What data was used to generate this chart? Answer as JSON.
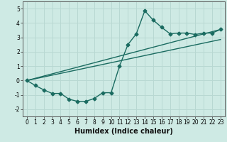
{
  "title": "",
  "xlabel": "Humidex (Indice chaleur)",
  "ylabel": "",
  "bg_color": "#ceeae4",
  "line_color": "#1a6b60",
  "grid_color": "#b8d8d2",
  "xlim": [
    -0.5,
    23.5
  ],
  "ylim": [
    -2.5,
    5.5
  ],
  "xticks": [
    0,
    1,
    2,
    3,
    4,
    5,
    6,
    7,
    8,
    9,
    10,
    11,
    12,
    13,
    14,
    15,
    16,
    17,
    18,
    19,
    20,
    21,
    22,
    23
  ],
  "yticks": [
    -2,
    -1,
    0,
    1,
    2,
    3,
    4,
    5
  ],
  "line1_x": [
    0,
    1,
    2,
    3,
    4,
    5,
    6,
    7,
    8,
    9,
    10,
    11,
    12,
    13,
    14,
    15,
    16,
    17,
    18,
    19,
    20,
    21,
    22,
    23
  ],
  "line1_y": [
    0.0,
    -0.35,
    -0.65,
    -0.9,
    -0.9,
    -1.3,
    -1.45,
    -1.45,
    -1.25,
    -0.85,
    -0.85,
    1.0,
    2.5,
    3.25,
    4.85,
    4.2,
    3.7,
    3.25,
    3.3,
    3.3,
    3.2,
    3.3,
    3.3,
    3.55
  ],
  "line2_x": [
    0,
    23
  ],
  "line2_y": [
    0.0,
    3.55
  ],
  "line3_x": [
    0,
    23
  ],
  "line3_y": [
    0.0,
    2.85
  ],
  "marker": "D",
  "marker_size": 2.5,
  "line_width": 1.0,
  "tick_fontsize": 5.5,
  "xlabel_fontsize": 7
}
